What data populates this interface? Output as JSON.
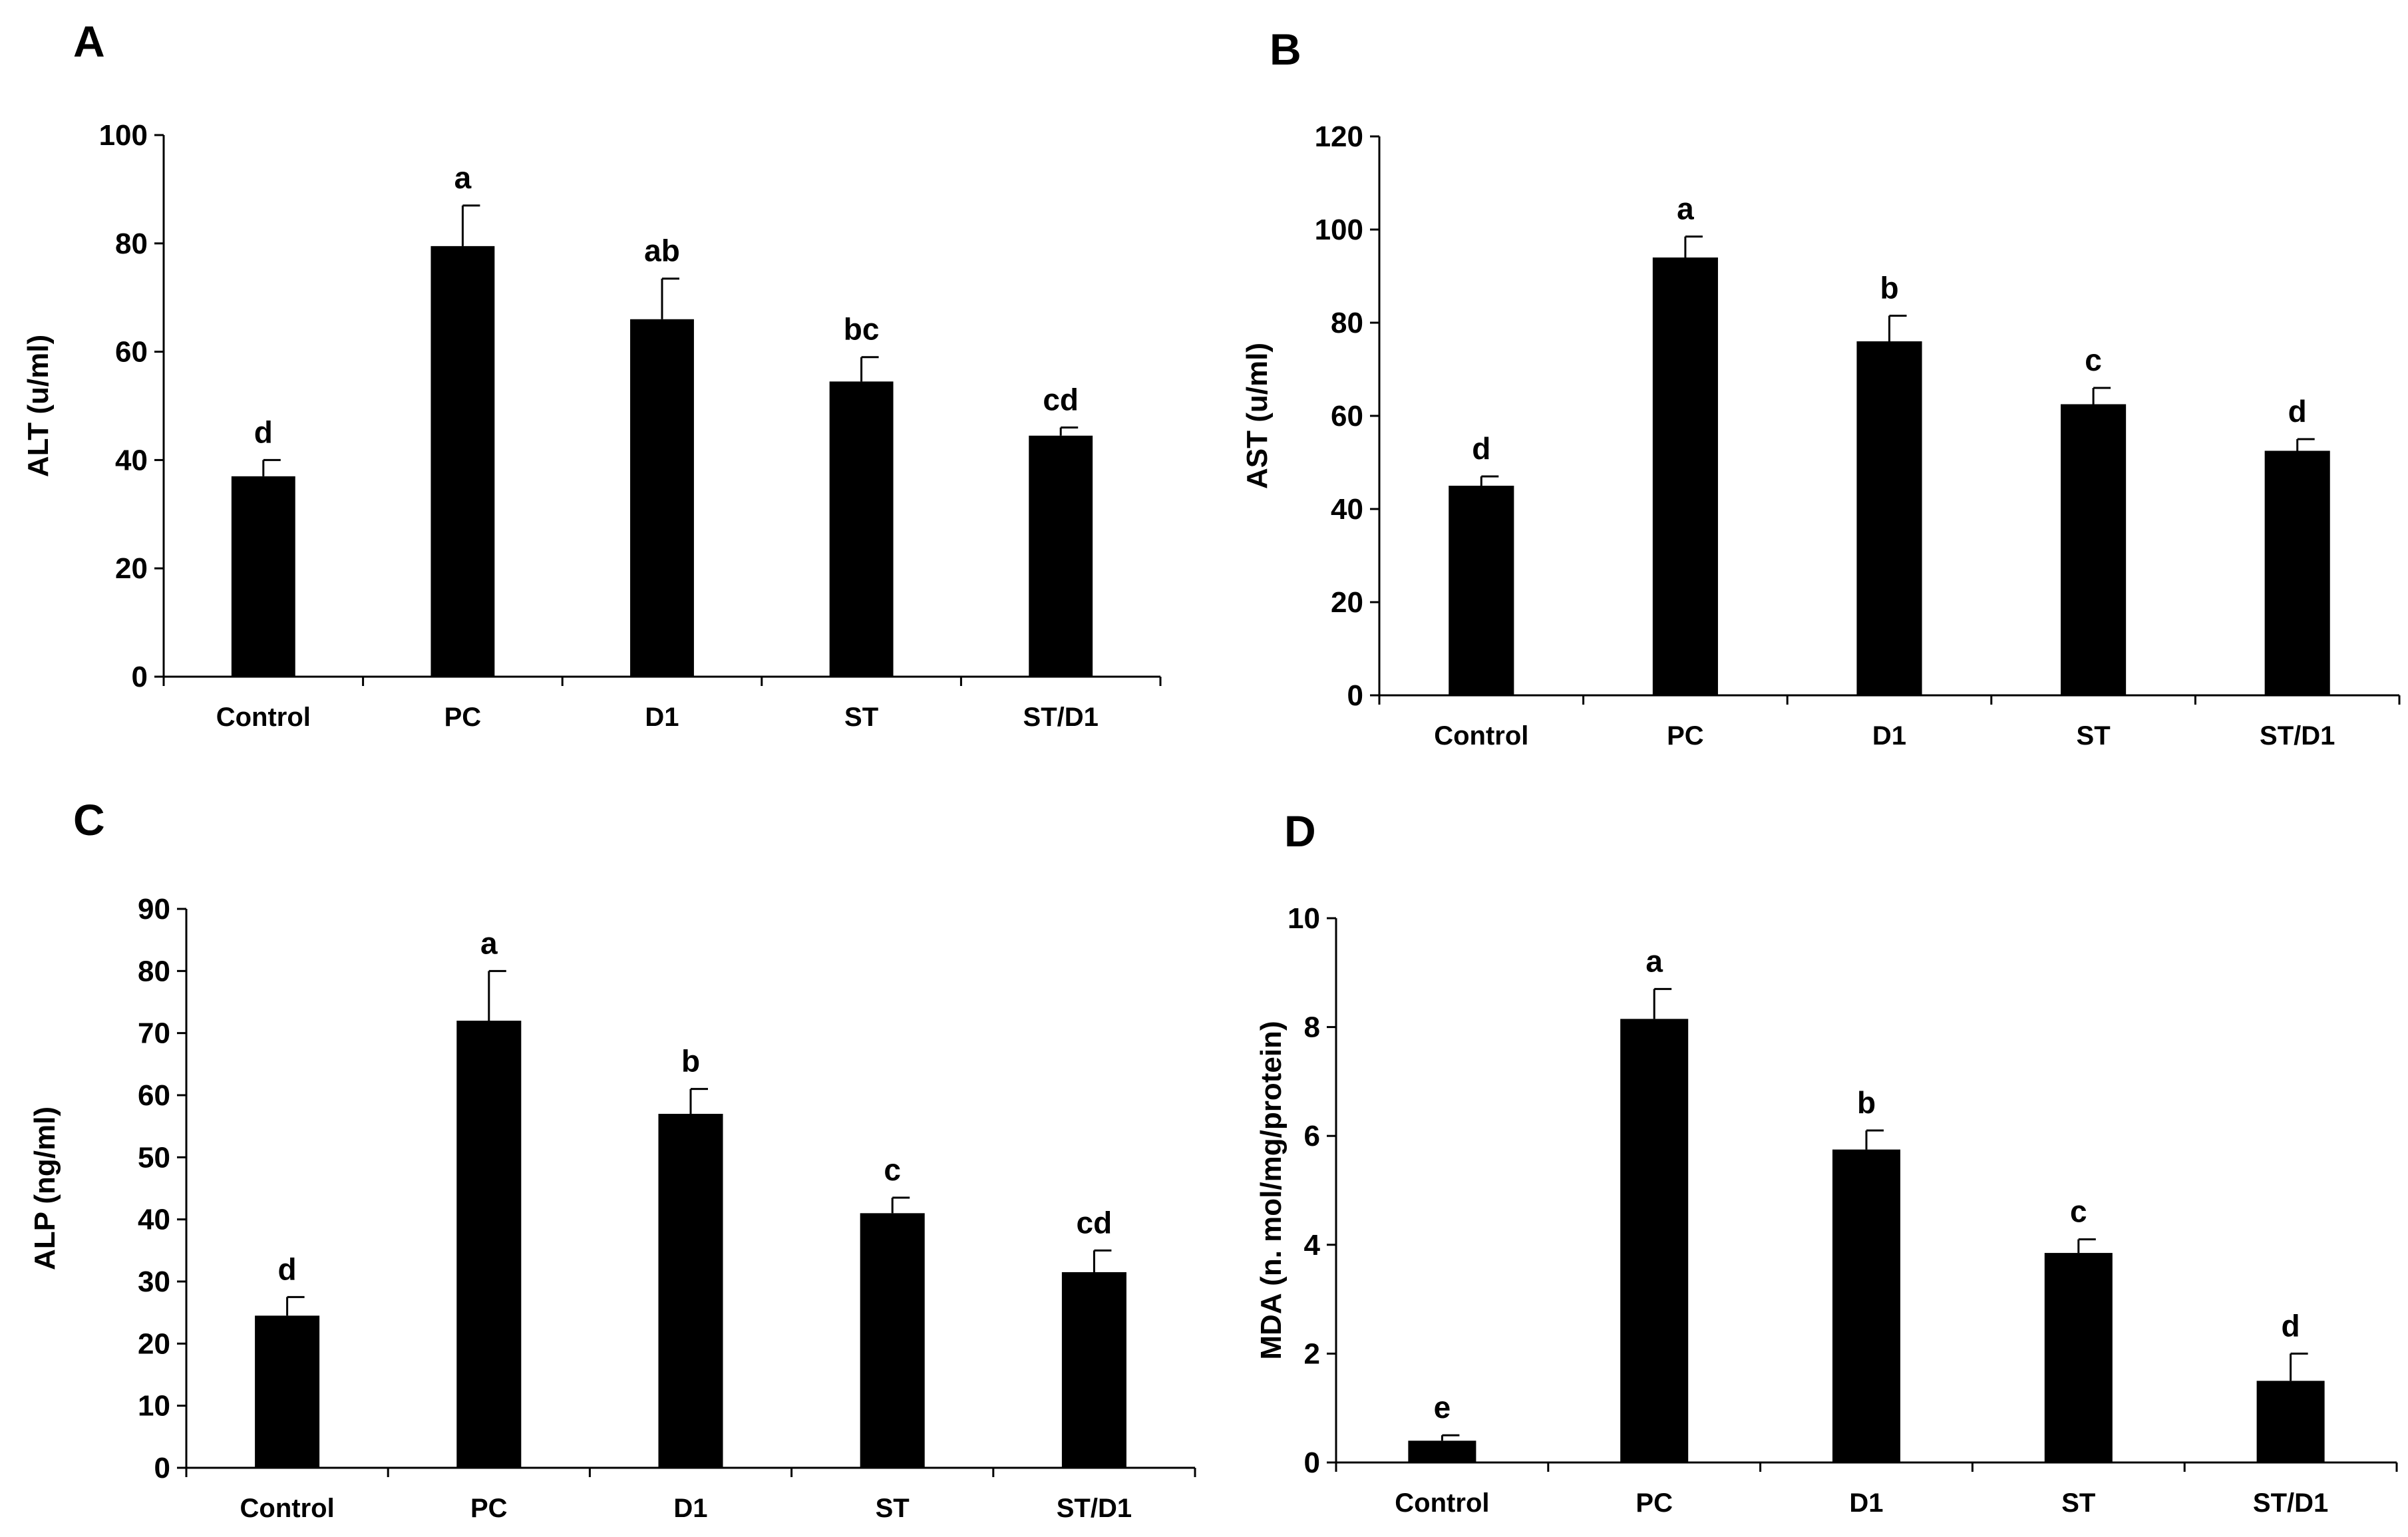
{
  "chart_data": [
    {
      "type": "bar",
      "panel_label": "A",
      "title": "",
      "xlabel": "",
      "ylabel": "ALT (u/ml)",
      "ylim": [
        0,
        100
      ],
      "yticks": [
        0,
        20,
        40,
        60,
        80,
        100
      ],
      "categories": [
        "Control",
        "PC",
        "D1",
        "ST",
        "ST/D1"
      ],
      "values": [
        37,
        79.5,
        66,
        54.5,
        44.5
      ],
      "errors": [
        3,
        7.5,
        7.5,
        4.5,
        1.5
      ],
      "significance": [
        "d",
        "a",
        "ab",
        "bc",
        "cd"
      ],
      "bar_color": "#000000",
      "grid": false
    },
    {
      "type": "bar",
      "panel_label": "B",
      "title": "",
      "xlabel": "",
      "ylabel": "AST  (u/ml)",
      "ylim": [
        0,
        120
      ],
      "yticks": [
        0,
        20,
        40,
        60,
        80,
        100,
        120
      ],
      "categories": [
        "Control",
        "PC",
        "D1",
        "ST",
        "ST/D1"
      ],
      "values": [
        45,
        94,
        76,
        62.5,
        52.5
      ],
      "errors": [
        2,
        4.5,
        5.5,
        3.5,
        2.5
      ],
      "significance": [
        "d",
        "a",
        "b",
        "c",
        "d"
      ],
      "bar_color": "#000000",
      "grid": false
    },
    {
      "type": "bar",
      "panel_label": "C",
      "title": "",
      "xlabel": "",
      "ylabel": "ALP  (ng/ml)",
      "ylim": [
        0,
        90
      ],
      "yticks": [
        0,
        10,
        20,
        30,
        40,
        50,
        60,
        70,
        80,
        90
      ],
      "categories": [
        "Control",
        "PC",
        "D1",
        "ST",
        "ST/D1"
      ],
      "values": [
        24.5,
        72,
        57,
        41,
        31.5
      ],
      "errors": [
        3,
        8,
        4,
        2.5,
        3.5
      ],
      "significance": [
        "d",
        "a",
        "b",
        "c",
        "cd"
      ],
      "bar_color": "#000000",
      "grid": false
    },
    {
      "type": "bar",
      "panel_label": "D",
      "title": "",
      "xlabel": "",
      "ylabel": "MDA (n. mol/mg/protein)",
      "ylim": [
        0,
        10
      ],
      "yticks": [
        0,
        2,
        4,
        6,
        8,
        10
      ],
      "categories": [
        "Control",
        "PC",
        "D1",
        "ST",
        "ST/D1"
      ],
      "values": [
        0.4,
        8.15,
        5.75,
        3.85,
        1.5
      ],
      "errors": [
        0.1,
        0.55,
        0.35,
        0.25,
        0.5
      ],
      "significance": [
        "e",
        "a",
        "b",
        "c",
        "d"
      ],
      "bar_color": "#000000",
      "grid": false
    }
  ]
}
